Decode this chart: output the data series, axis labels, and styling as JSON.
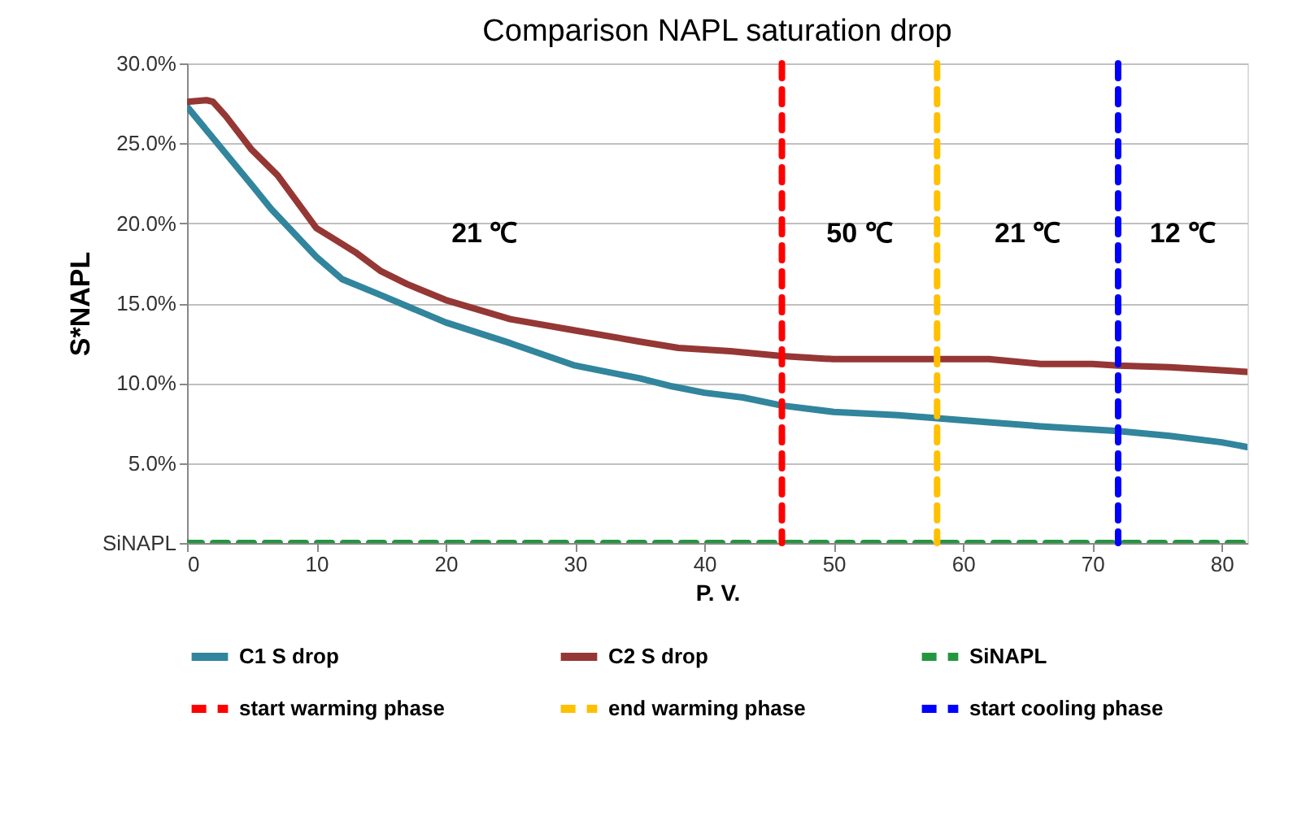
{
  "chart_data": {
    "type": "line",
    "title": "Comparison NAPL saturation drop",
    "xlabel": "P. V.",
    "ylabel": "S*NAPL",
    "xlim": [
      0,
      82
    ],
    "xticks": [
      0,
      10,
      20,
      30,
      40,
      50,
      60,
      70,
      80
    ],
    "ylim": [
      0,
      30
    ],
    "yticks": [
      {
        "value": 0,
        "label": "SiNAPL"
      },
      {
        "value": 5,
        "label": "5.0%"
      },
      {
        "value": 10,
        "label": "10.0%"
      },
      {
        "value": 15,
        "label": "15.0%"
      },
      {
        "value": 20,
        "label": "20.0%"
      },
      {
        "value": 25,
        "label": "25.0%"
      },
      {
        "value": 30,
        "label": "30.0%"
      }
    ],
    "grid": "y",
    "legend": "bottom",
    "series": [
      {
        "name": "C1 S drop",
        "color": "#31859c",
        "line_style": "solid",
        "x": [
          0,
          5,
          6.5,
          10,
          12,
          15,
          20,
          25,
          30,
          35,
          37.5,
          40,
          43,
          46,
          50,
          55,
          58,
          62,
          66,
          72,
          76,
          80,
          82
        ],
        "values": [
          27.3,
          22.4,
          20.9,
          17.9,
          16.5,
          15.5,
          13.8,
          12.5,
          11.1,
          10.3,
          9.8,
          9.4,
          9.1,
          8.6,
          8.2,
          8.0,
          7.8,
          7.55,
          7.3,
          7.0,
          6.7,
          6.3,
          6.0
        ]
      },
      {
        "name": "C2 S drop",
        "color": "#953735",
        "line_style": "solid",
        "x": [
          0,
          1.5,
          2,
          3,
          5,
          7,
          9,
          10,
          11,
          13,
          15,
          17,
          20,
          25,
          30,
          35,
          38,
          42,
          46,
          50,
          55,
          62,
          66,
          70,
          72,
          76,
          80,
          82
        ],
        "values": [
          27.6,
          27.7,
          27.6,
          26.7,
          24.6,
          23.0,
          20.8,
          19.7,
          19.2,
          18.2,
          17.0,
          16.2,
          15.2,
          14.0,
          13.3,
          12.6,
          12.2,
          12.0,
          11.7,
          11.5,
          11.5,
          11.5,
          11.2,
          11.2,
          11.1,
          11.0,
          10.8,
          10.7
        ]
      },
      {
        "name": "SiNAPL",
        "color": "#23973f",
        "line_style": "dashed",
        "x": [
          0,
          82
        ],
        "values": [
          0,
          0
        ]
      }
    ],
    "ref_lines": [
      {
        "axis": "x",
        "value": 46,
        "label": "start warming phase",
        "color": "#ff0000",
        "line_style": "dashed"
      },
      {
        "axis": "x",
        "value": 58,
        "label": "end warming phase",
        "color": "#ffc000",
        "line_style": "dashed"
      },
      {
        "axis": "x",
        "value": 72,
        "label": "start cooling phase",
        "color": "#0000ff",
        "line_style": "dashed"
      }
    ],
    "annotations": [
      "21 ℃",
      "50 ℃",
      "21 ℃",
      "12 ℃"
    ]
  }
}
